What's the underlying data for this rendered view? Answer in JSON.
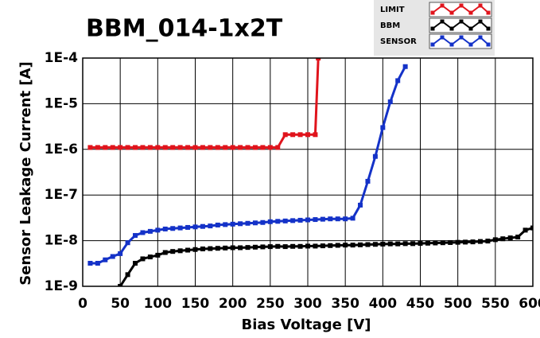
{
  "chart_data": {
    "type": "line",
    "title": "BBM_014-1x2T",
    "xlabel": "Bias Voltage [V]",
    "ylabel": "Sensor Leakage Current [A]",
    "xlim": [
      0,
      600
    ],
    "xticks": [
      0,
      50,
      100,
      150,
      200,
      250,
      300,
      350,
      400,
      450,
      500,
      550,
      600
    ],
    "ylim": [
      1e-09,
      0.0001
    ],
    "log_y": true,
    "grid": true,
    "yticks": [
      {
        "value": 1e-09,
        "label": "1E-9"
      },
      {
        "value": 1e-08,
        "label": "1E-8"
      },
      {
        "value": 1e-07,
        "label": "1E-7"
      },
      {
        "value": 1e-06,
        "label": "1E-6"
      },
      {
        "value": 1e-05,
        "label": "1E-5"
      },
      {
        "value": 0.0001,
        "label": "1E-4"
      }
    ],
    "series": [
      {
        "name": "LIMIT",
        "color": "#e0141c",
        "x": [
          10,
          20,
          30,
          40,
          50,
          60,
          70,
          80,
          90,
          100,
          110,
          120,
          130,
          140,
          150,
          160,
          170,
          180,
          190,
          200,
          210,
          220,
          230,
          240,
          250,
          260,
          270,
          280,
          290,
          300,
          310,
          314
        ],
        "values": [
          1.1e-06,
          1.1e-06,
          1.1e-06,
          1.1e-06,
          1.1e-06,
          1.1e-06,
          1.1e-06,
          1.1e-06,
          1.1e-06,
          1.1e-06,
          1.1e-06,
          1.1e-06,
          1.1e-06,
          1.1e-06,
          1.1e-06,
          1.1e-06,
          1.1e-06,
          1.1e-06,
          1.1e-06,
          1.1e-06,
          1.1e-06,
          1.1e-06,
          1.1e-06,
          1.1e-06,
          1.1e-06,
          1.1e-06,
          2.1e-06,
          2.1e-06,
          2.1e-06,
          2.1e-06,
          2.1e-06,
          0.0001
        ]
      },
      {
        "name": "BBM",
        "color": "#000000",
        "x": [
          50,
          60,
          70,
          80,
          90,
          100,
          110,
          120,
          130,
          140,
          150,
          160,
          170,
          180,
          190,
          200,
          210,
          220,
          230,
          240,
          250,
          260,
          270,
          280,
          290,
          300,
          310,
          320,
          330,
          340,
          350,
          360,
          370,
          380,
          390,
          400,
          410,
          420,
          430,
          440,
          450,
          460,
          470,
          480,
          490,
          500,
          510,
          520,
          530,
          540,
          550,
          560,
          570,
          580,
          590,
          600
        ],
        "values": [
          1e-09,
          1.8e-09,
          3.2e-09,
          4e-09,
          4.4e-09,
          4.8e-09,
          5.5e-09,
          5.8e-09,
          6e-09,
          6.2e-09,
          6.4e-09,
          6.6e-09,
          6.7e-09,
          6.8e-09,
          6.9e-09,
          7e-09,
          7e-09,
          7.1e-09,
          7.2e-09,
          7.3e-09,
          7.4e-09,
          7.5e-09,
          7.4e-09,
          7.5e-09,
          7.5e-09,
          7.6e-09,
          7.6e-09,
          7.7e-09,
          7.8e-09,
          7.9e-09,
          8e-09,
          8e-09,
          8.1e-09,
          8.2e-09,
          8.3e-09,
          8.4e-09,
          8.5e-09,
          8.5e-09,
          8.6e-09,
          8.6e-09,
          8.7e-09,
          8.8e-09,
          8.9e-09,
          9e-09,
          9.1e-09,
          9.2e-09,
          9.3e-09,
          9.4e-09,
          9.6e-09,
          9.8e-09,
          1.05e-08,
          1.1e-08,
          1.15e-08,
          1.2e-08,
          1.7e-08,
          1.9e-08
        ]
      },
      {
        "name": "SENSOR",
        "color": "#1432c8",
        "x": [
          10,
          20,
          30,
          40,
          50,
          60,
          70,
          80,
          90,
          100,
          110,
          120,
          130,
          140,
          150,
          160,
          170,
          180,
          190,
          200,
          210,
          220,
          230,
          240,
          250,
          260,
          270,
          280,
          290,
          300,
          310,
          320,
          330,
          340,
          350,
          360,
          370,
          380,
          390,
          400,
          410,
          420,
          430
        ],
        "values": [
          3.2e-09,
          3.2e-09,
          3.8e-09,
          4.5e-09,
          5.2e-09,
          9e-09,
          1.3e-08,
          1.5e-08,
          1.6e-08,
          1.7e-08,
          1.8e-08,
          1.85e-08,
          1.9e-08,
          1.95e-08,
          2e-08,
          2.05e-08,
          2.1e-08,
          2.2e-08,
          2.25e-08,
          2.3e-08,
          2.35e-08,
          2.4e-08,
          2.45e-08,
          2.5e-08,
          2.6e-08,
          2.65e-08,
          2.7e-08,
          2.75e-08,
          2.8e-08,
          2.85e-08,
          2.9e-08,
          2.95e-08,
          3e-08,
          3e-08,
          3e-08,
          3.1e-08,
          6e-08,
          2e-07,
          7e-07,
          3e-06,
          1.1e-05,
          3.2e-05,
          6.5e-05
        ]
      }
    ]
  }
}
